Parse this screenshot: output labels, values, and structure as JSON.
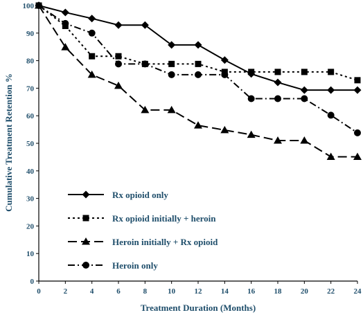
{
  "chart_data": {
    "type": "line",
    "title": "",
    "xlabel": "Treatment Duration (Months)",
    "ylabel": "Cumulative Treatment Retention %",
    "xlim": [
      0,
      24
    ],
    "ylim": [
      0,
      100
    ],
    "xticks": [
      0,
      2,
      4,
      6,
      8,
      10,
      12,
      14,
      16,
      18,
      20,
      22,
      24
    ],
    "yticks": [
      0,
      10,
      20,
      30,
      40,
      50,
      60,
      70,
      80,
      90,
      100
    ],
    "grid": false,
    "legend_position": "left-middle",
    "series": [
      {
        "name": "Rx opioid only",
        "marker": "diamond",
        "dash": "solid",
        "x": [
          0,
          2,
          4,
          6,
          8,
          10,
          12,
          14,
          16,
          18,
          20,
          22,
          24
        ],
        "y": [
          100,
          97.5,
          95.3,
          92.9,
          92.9,
          85.7,
          85.7,
          80.2,
          75.2,
          72.1,
          69.3,
          69.3,
          69.3
        ]
      },
      {
        "name": "Rx opioid initially + heroin",
        "marker": "square",
        "dash": "dotted",
        "x": [
          0,
          2,
          4,
          6,
          8,
          10,
          12,
          14,
          16,
          18,
          20,
          22,
          24
        ],
        "y": [
          100,
          92.6,
          81.6,
          81.6,
          78.8,
          78.8,
          78.8,
          75.9,
          75.9,
          75.9,
          75.9,
          75.9,
          72.9
        ]
      },
      {
        "name": "Heroin initially + Rx opioid",
        "marker": "triangle",
        "dash": "long-dash",
        "x": [
          0,
          2,
          4,
          6,
          8,
          10,
          12,
          14,
          16,
          18,
          20,
          22,
          24
        ],
        "y": [
          100,
          84.9,
          74.9,
          70.9,
          62.1,
          62.1,
          56.5,
          54.8,
          53.1,
          51.0,
          51.0,
          45.1,
          45.1
        ]
      },
      {
        "name": "Heroin only",
        "marker": "circle",
        "dash": "dash-dot",
        "x": [
          0,
          2,
          4,
          6,
          8,
          10,
          12,
          14,
          16,
          18,
          20,
          22,
          24
        ],
        "y": [
          100,
          93.5,
          90.0,
          78.8,
          78.8,
          74.9,
          74.9,
          74.9,
          66.2,
          66.2,
          66.2,
          60.2,
          53.8
        ]
      }
    ]
  }
}
